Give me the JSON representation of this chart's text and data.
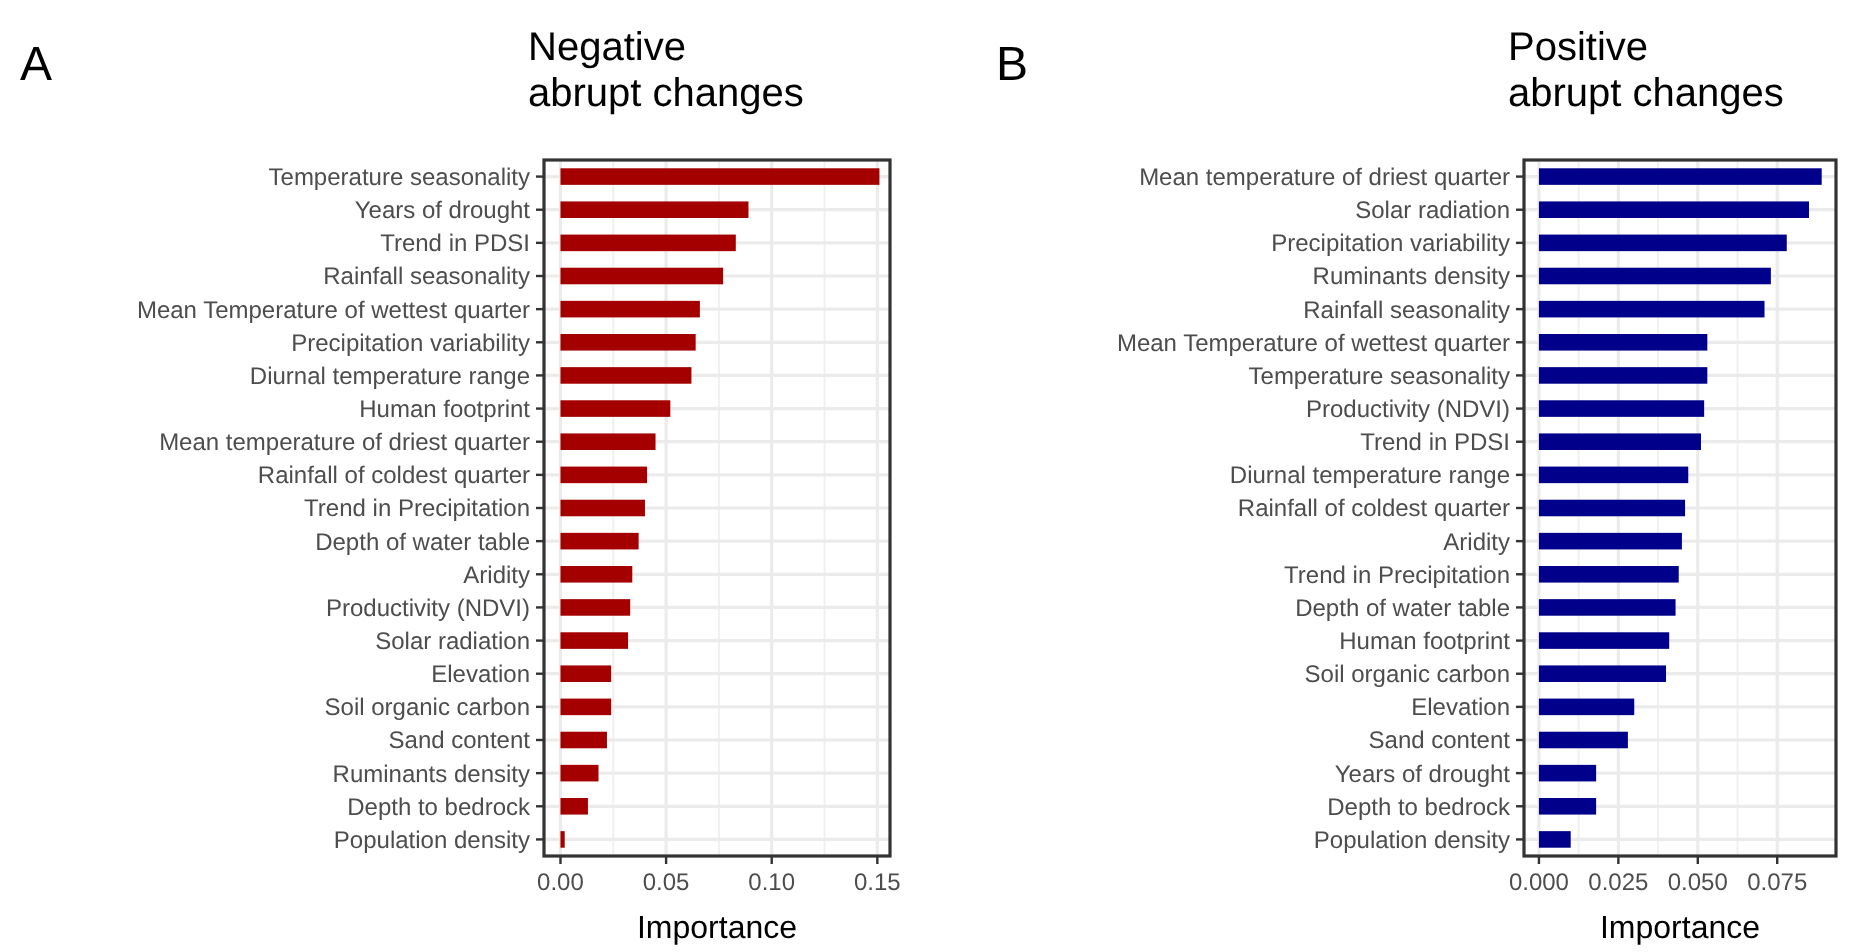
{
  "chart_data": [
    {
      "type": "bar",
      "orientation": "horizontal",
      "title": "Negative\nabrupt changes",
      "xlabel": "Importance",
      "annotations": [
        "A"
      ],
      "grid": true,
      "categories": [
        "Temperature seasonality",
        "Years of drought",
        "Trend in PDSI",
        "Rainfall seasonality",
        "Mean Temperature of wettest quarter",
        "Precipitation variability",
        "Diurnal temperature range",
        "Human footprint",
        "Mean temperature of driest quarter",
        "Rainfall of coldest quarter",
        "Trend in Precipitation",
        "Depth of water table",
        "Aridity",
        "Productivity (NDVI)",
        "Solar radiation",
        "Elevation",
        "Soil organic carbon",
        "Sand content",
        "Ruminants density",
        "Depth to bedrock",
        "Population density"
      ],
      "series": [
        {
          "color": "#a50000",
          "values": [
            0.151,
            0.089,
            0.083,
            0.077,
            0.066,
            0.064,
            0.062,
            0.052,
            0.045,
            0.041,
            0.04,
            0.037,
            0.034,
            0.033,
            0.032,
            0.024,
            0.024,
            0.022,
            0.018,
            0.013,
            0.002
          ]
        }
      ],
      "xlim": [
        -0.0078,
        0.156
      ],
      "xticks": [
        {
          "value": 0,
          "label": "0.00"
        },
        {
          "value": 0.05,
          "label": "0.05"
        },
        {
          "value": 0.1,
          "label": "0.10"
        },
        {
          "value": 0.15,
          "label": "0.15"
        }
      ]
    },
    {
      "type": "bar",
      "orientation": "horizontal",
      "title": "Positive\nabrupt changes",
      "xlabel": "Importance",
      "annotations": [
        "B"
      ],
      "grid": true,
      "categories": [
        "Mean temperature of driest quarter",
        "Solar radiation",
        "Precipitation variability",
        "Ruminants density",
        "Rainfall seasonality",
        "Mean Temperature of wettest quarter",
        "Temperature seasonality",
        "Productivity (NDVI)",
        "Trend in PDSI",
        "Diurnal temperature range",
        "Rainfall of coldest quarter",
        "Aridity",
        "Trend in Precipitation",
        "Depth of water table",
        "Human footprint",
        "Soil organic carbon",
        "Elevation",
        "Sand content",
        "Years of drought",
        "Depth to bedrock",
        "Population density"
      ],
      "series": [
        {
          "color": "#00008b",
          "values": [
            0.089,
            0.085,
            0.078,
            0.073,
            0.071,
            0.053,
            0.053,
            0.052,
            0.051,
            0.047,
            0.046,
            0.045,
            0.044,
            0.043,
            0.041,
            0.04,
            0.03,
            0.028,
            0.018,
            0.018,
            0.01
          ]
        }
      ],
      "xlim": [
        -0.0047,
        0.0935
      ],
      "xticks": [
        {
          "value": 0,
          "label": "0.000"
        },
        {
          "value": 0.025,
          "label": "0.025"
        },
        {
          "value": 0.05,
          "label": "0.050"
        },
        {
          "value": 0.075,
          "label": "0.075"
        }
      ]
    }
  ]
}
